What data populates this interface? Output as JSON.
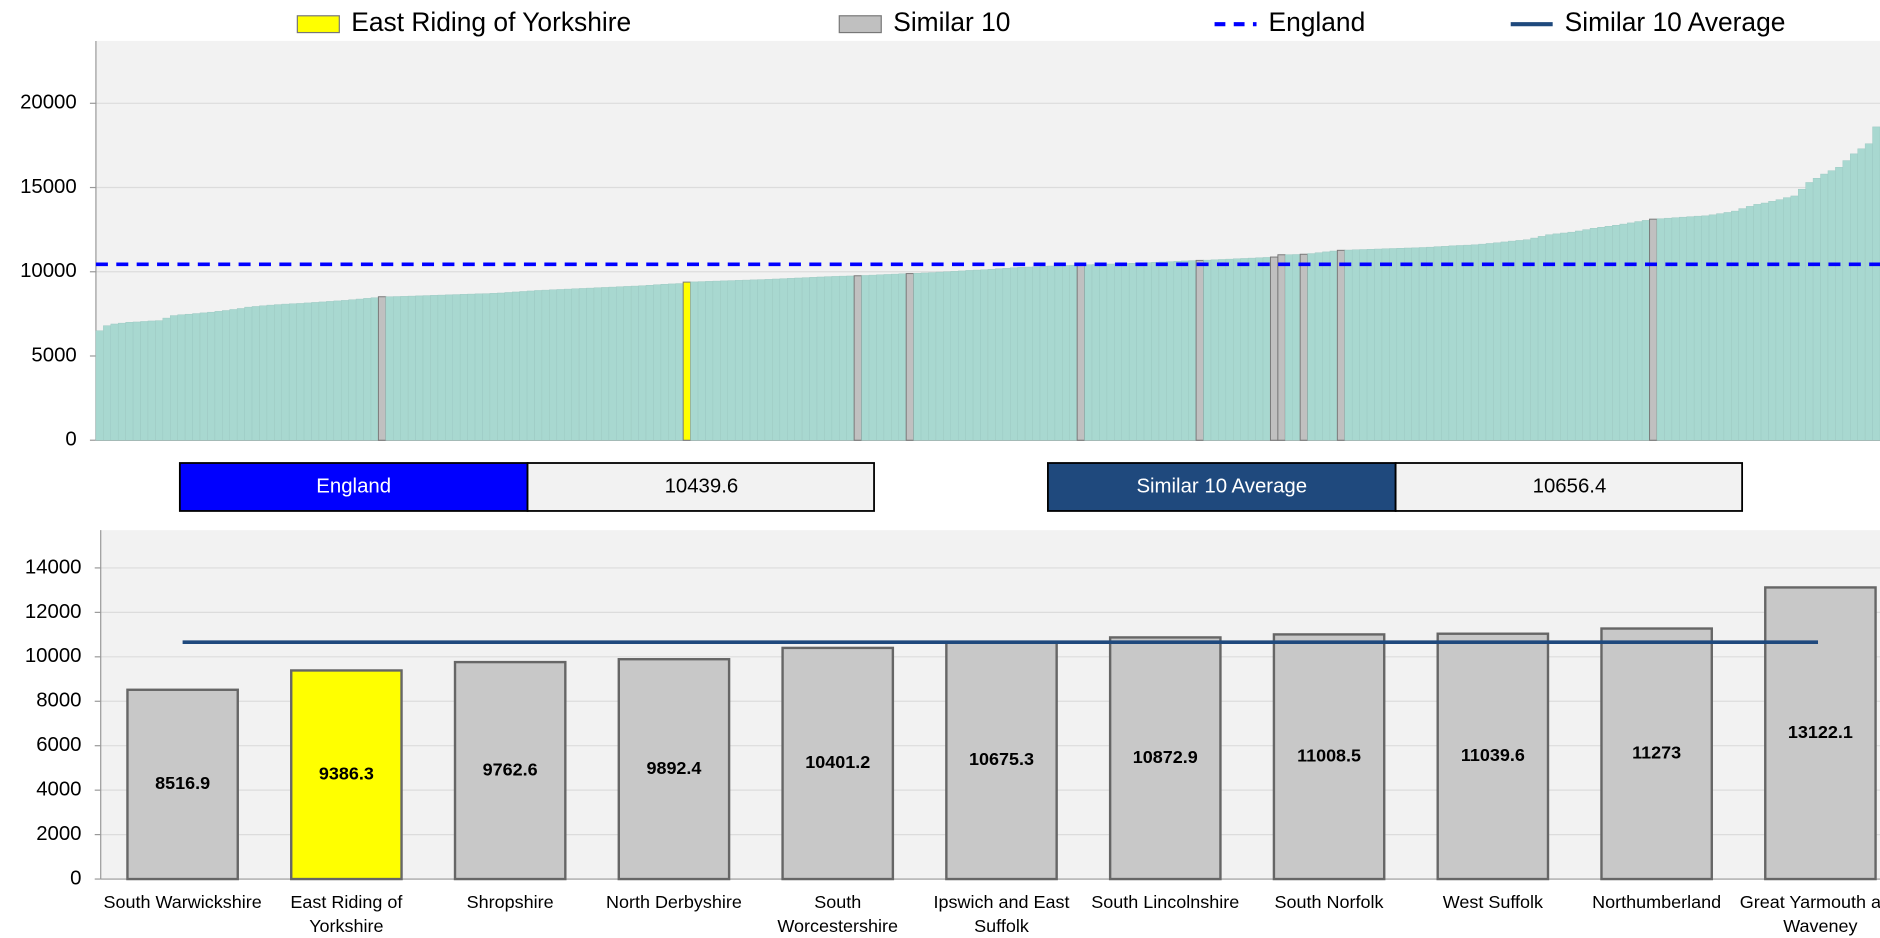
{
  "legend": [
    {
      "name": "East Riding of Yorkshire",
      "color": "#ffff00",
      "style": "box"
    },
    {
      "name": "Similar 10",
      "color": "#c0c0c0",
      "style": "box"
    },
    {
      "name": "England",
      "color": "#0000ff",
      "style": "dashed"
    },
    {
      "name": "Similar 10 Average",
      "color": "#1f497d",
      "style": "solid"
    }
  ],
  "summary": [
    {
      "label": "England",
      "value": 10439.6,
      "color": "#0000ff",
      "line": "dashed",
      "chart": 0
    },
    {
      "label": "Similar 10 Average",
      "value": 10656.4,
      "color": "#1f497d",
      "line": "solid",
      "chart": 1
    }
  ],
  "chart_data": [
    {
      "type": "bar",
      "color": "#a8d8d0",
      "highlight_colors": {
        "38": "#c0c0c0",
        "79": "#ffff00",
        "102": "#c0c0c0",
        "109": "#c0c0c0",
        "132": "#c0c0c0",
        "148": "#c0c0c0",
        "158": "#c0c0c0",
        "159": "#c0c0c0",
        "162": "#c0c0c0",
        "167": "#c0c0c0",
        "209": "#c0c0c0"
      },
      "ylim": [
        0,
        23700
      ],
      "yticks": [
        0,
        5000,
        10000,
        15000,
        20000
      ],
      "grid": true,
      "values": [
        6500,
        6800,
        6900,
        6950,
        7000,
        7020,
        7050,
        7080,
        7100,
        7250,
        7400,
        7450,
        7480,
        7520,
        7560,
        7600,
        7650,
        7700,
        7760,
        7820,
        7900,
        7940,
        7980,
        8020,
        8050,
        8080,
        8100,
        8120,
        8150,
        8180,
        8210,
        8240,
        8270,
        8300,
        8340,
        8380,
        8420,
        8460,
        8516.9,
        8520,
        8530,
        8540,
        8555,
        8570,
        8585,
        8600,
        8615,
        8630,
        8645,
        8660,
        8675,
        8690,
        8700,
        8720,
        8740,
        8770,
        8800,
        8830,
        8860,
        8890,
        8910,
        8930,
        8950,
        8970,
        8990,
        9010,
        9030,
        9050,
        9070,
        9090,
        9110,
        9130,
        9150,
        9170,
        9200,
        9230,
        9260,
        9280,
        9300,
        9386.3,
        9400,
        9415,
        9430,
        9445,
        9460,
        9475,
        9490,
        9505,
        9520,
        9535,
        9550,
        9570,
        9590,
        9610,
        9630,
        9650,
        9670,
        9690,
        9710,
        9725,
        9740,
        9750,
        9762.6,
        9780,
        9800,
        9820,
        9840,
        9860,
        9880,
        9892.4,
        9910,
        9930,
        9950,
        9980,
        10000,
        10025,
        10050,
        10080,
        10100,
        10120,
        10150,
        10180,
        10210,
        10240,
        10260,
        10280,
        10300,
        10320,
        10340,
        10360,
        10375,
        10390,
        10401.2,
        10415,
        10430,
        10445,
        10460,
        10475,
        10490,
        10505,
        10520,
        10540,
        10560,
        10580,
        10600,
        10620,
        10640,
        10660,
        10675.3,
        10690,
        10710,
        10730,
        10750,
        10770,
        10790,
        10810,
        10830,
        10850,
        10872.9,
        11008.5,
        11015,
        11025,
        11039.6,
        11080,
        11130,
        11180,
        11230,
        11273,
        11290,
        11305,
        11320,
        11335,
        11350,
        11365,
        11380,
        11395,
        11410,
        11420,
        11440,
        11460,
        11490,
        11510,
        11540,
        11560,
        11580,
        11600,
        11640,
        11680,
        11720,
        11770,
        11820,
        11860,
        11900,
        12000,
        12100,
        12200,
        12250,
        12300,
        12350,
        12420,
        12500,
        12580,
        12640,
        12700,
        12760,
        12830,
        12900,
        12980,
        13050,
        13122.1,
        13150,
        13180,
        13210,
        13240,
        13270,
        13300,
        13320,
        13380,
        13450,
        13520,
        13600,
        13750,
        13880,
        14000,
        14080,
        14180,
        14280,
        14400,
        14500,
        14900,
        15300,
        15550,
        15800,
        16000,
        16200,
        16600,
        17000,
        17300,
        17600,
        18600
      ]
    },
    {
      "type": "bar",
      "color": "#c8c8c8",
      "highlight_colors": {
        "1": "#ffff00"
      },
      "ylim": [
        0,
        15700
      ],
      "yticks": [
        0,
        2000,
        4000,
        6000,
        8000,
        10000,
        12000,
        14000
      ],
      "grid": true,
      "categories": [
        "South Warwickshire",
        "East Riding of Yorkshire",
        "Shropshire",
        "North Derbyshire",
        "South Worcestershire",
        "Ipswich and East Suffolk",
        "South Lincolnshire",
        "South Norfolk",
        "West Suffolk",
        "Northumberland",
        "Great Yarmouth and Waveney"
      ],
      "values": [
        8516.9,
        9386.3,
        9762.6,
        9892.4,
        10401.2,
        10675.3,
        10872.9,
        11008.5,
        11039.6,
        11273,
        13122.1
      ]
    }
  ]
}
